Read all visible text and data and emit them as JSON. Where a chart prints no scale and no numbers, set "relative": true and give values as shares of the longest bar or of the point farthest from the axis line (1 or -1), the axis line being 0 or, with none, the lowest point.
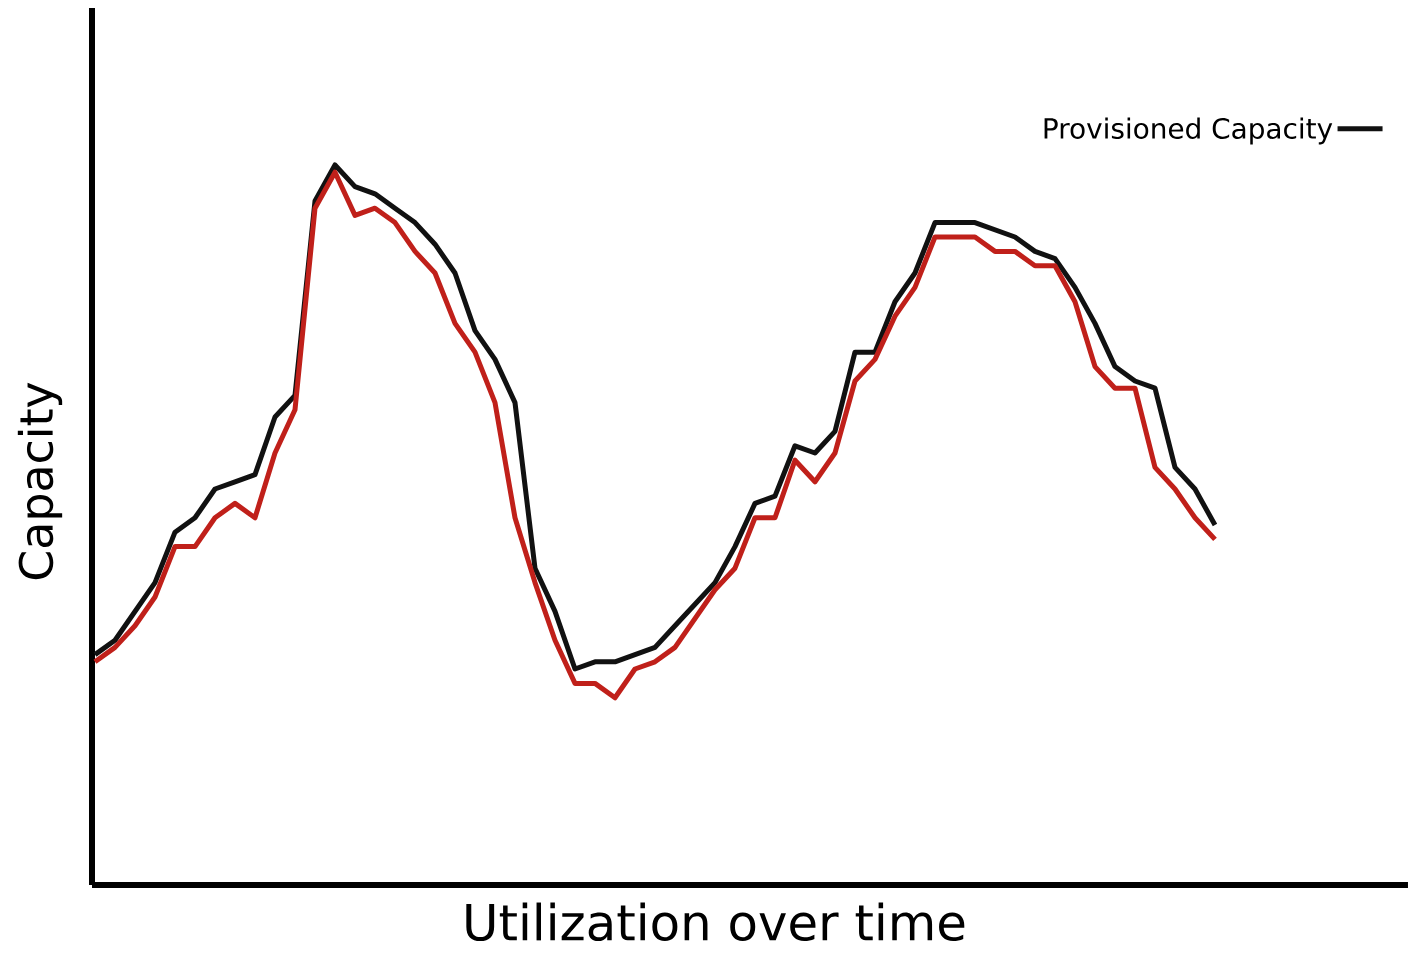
{
  "chart_data": {
    "type": "line",
    "relative": true,
    "xlabel": "Utilization over time",
    "ylabel": "Capacity",
    "legend": "top right",
    "marker": "none",
    "line_style": "solid",
    "categories": [
      null,
      null,
      null,
      null,
      null,
      null,
      null,
      null,
      null,
      null,
      null,
      null,
      null,
      null,
      null,
      null,
      null,
      null,
      null,
      null,
      null,
      null,
      null,
      null,
      null,
      null,
      null,
      null,
      null,
      null,
      null,
      null,
      null,
      null,
      null,
      null,
      null,
      null,
      null,
      null,
      null,
      null,
      null,
      null,
      null,
      null,
      null,
      null,
      null,
      null,
      null,
      null,
      null,
      null,
      null,
      null,
      null
    ],
    "series": [
      {
        "name": "Provisioned Capacity",
        "color": "#111111",
        "values": [
          0.32,
          0.34,
          0.38,
          0.42,
          0.49,
          0.51,
          0.55,
          0.56,
          0.57,
          0.65,
          0.68,
          0.95,
          1.0,
          0.97,
          0.96,
          0.94,
          0.92,
          0.89,
          0.85,
          0.77,
          0.73,
          0.67,
          0.44,
          0.38,
          0.3,
          0.31,
          0.31,
          0.32,
          0.33,
          0.36,
          0.39,
          0.42,
          0.47,
          0.53,
          0.54,
          0.61,
          0.6,
          0.63,
          0.74,
          0.74,
          0.81,
          0.85,
          0.92,
          0.92,
          0.92,
          0.91,
          0.9,
          0.88,
          0.87,
          0.83,
          0.78,
          0.72,
          0.7,
          0.69,
          0.58,
          0.55,
          0.5
        ]
      },
      {
        "color": "#c0201a",
        "values": [
          0.31,
          0.33,
          0.36,
          0.4,
          0.47,
          0.47,
          0.51,
          0.53,
          0.51,
          0.6,
          0.66,
          0.94,
          0.99,
          0.93,
          0.94,
          0.92,
          0.88,
          0.85,
          0.78,
          0.74,
          0.67,
          0.51,
          0.42,
          0.34,
          0.28,
          0.28,
          0.26,
          0.3,
          0.31,
          0.33,
          0.37,
          0.41,
          0.44,
          0.51,
          0.51,
          0.59,
          0.56,
          0.6,
          0.7,
          0.73,
          0.79,
          0.83,
          0.9,
          0.9,
          0.9,
          0.88,
          0.88,
          0.86,
          0.86,
          0.81,
          0.72,
          0.69,
          0.69,
          0.58,
          0.55,
          0.51,
          0.48
        ]
      }
    ]
  }
}
